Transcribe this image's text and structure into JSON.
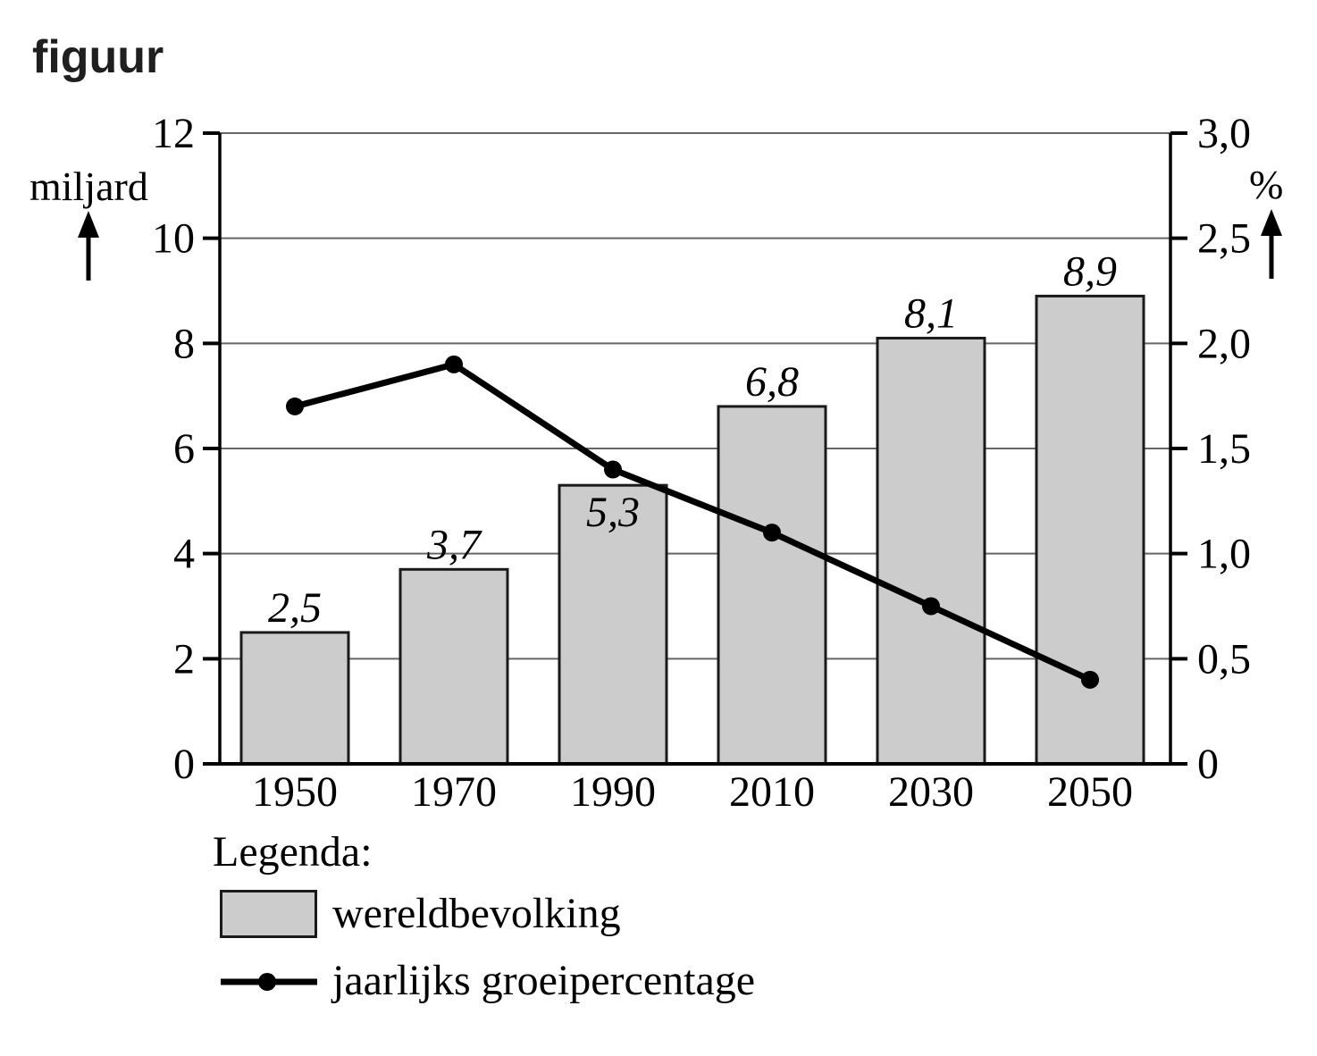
{
  "title": "figuur",
  "chart_data": {
    "type": "bar+line",
    "categories": [
      "1950",
      "1970",
      "1990",
      "2010",
      "2030",
      "2050"
    ],
    "series": [
      {
        "name": "wereldbevolking",
        "type": "bar",
        "axis": "left",
        "values": [
          2.5,
          3.7,
          5.3,
          6.8,
          8.1,
          8.9
        ],
        "value_labels": [
          "2,5",
          "3,7",
          "5,3",
          "6,8",
          "8,1",
          "8,9"
        ],
        "label_placement": [
          "above",
          "above",
          "inside",
          "above",
          "above",
          "above"
        ]
      },
      {
        "name": "jaarlijks groeipercentage",
        "type": "line",
        "axis": "right",
        "values": [
          1.7,
          1.9,
          1.4,
          1.1,
          0.75,
          0.4
        ]
      }
    ],
    "left_axis": {
      "label": "miljard",
      "min": 0,
      "max": 12,
      "tick_step": 2,
      "tick_labels": [
        "0",
        "2",
        "4",
        "6",
        "8",
        "10",
        "12"
      ]
    },
    "right_axis": {
      "label": "%",
      "min": 0,
      "max": 3,
      "tick_step": 0.5,
      "tick_labels": [
        "0",
        "0,5",
        "1,0",
        "1,5",
        "2,0",
        "2,5",
        "3,0"
      ]
    },
    "grid": true,
    "legend_position": "bottom-left"
  },
  "legend": {
    "title": "Legenda:",
    "items": [
      {
        "label": "wereldbevolking",
        "marker": "bar-swatch"
      },
      {
        "label": "jaarlijks groeipercentage",
        "marker": "line-dot"
      }
    ]
  },
  "colors": {
    "background": "#ffffff",
    "bar_fill": "#cccccc",
    "bar_border": "#1a1a1a",
    "line": "#000000",
    "grid": "#666666",
    "axis": "#000000",
    "text": "#000000",
    "title": "#1f1f1f"
  }
}
